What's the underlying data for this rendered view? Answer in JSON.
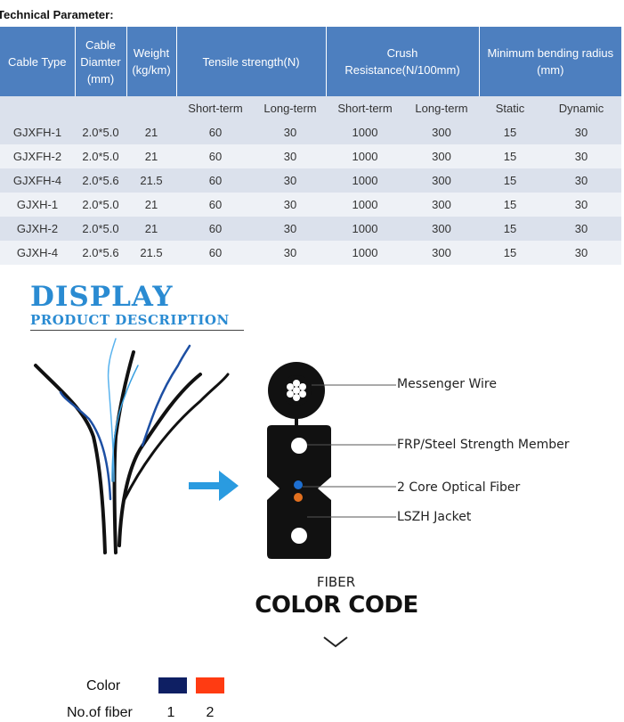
{
  "section_title": "Technical Parameter:",
  "table": {
    "headers": {
      "cable_type": "Cable Type",
      "cable_diameter": [
        "Cable",
        "Diamter",
        "(mm)"
      ],
      "weight": [
        "Weight",
        "(kg/km)"
      ],
      "tensile": "Tensile strength(N)",
      "crush": [
        "Crush",
        "Resistance(N/100mm)"
      ],
      "bending": [
        "Minimum bending radius",
        "(mm)"
      ]
    },
    "subheaders": [
      "Short-term",
      "Long-term",
      "Short-term",
      "Long-term",
      "Static",
      "Dynamic"
    ],
    "rows": [
      [
        "GJXFH-1",
        "2.0*5.0",
        "21",
        "60",
        "30",
        "1000",
        "300",
        "15",
        "30"
      ],
      [
        "GJXFH-2",
        "2.0*5.0",
        "21",
        "60",
        "30",
        "1000",
        "300",
        "15",
        "30"
      ],
      [
        "GJXFH-4",
        "2.0*5.6",
        "21.5",
        "60",
        "30",
        "1000",
        "300",
        "15",
        "30"
      ],
      [
        "GJXH-1",
        "2.0*5.0",
        "21",
        "60",
        "30",
        "1000",
        "300",
        "15",
        "30"
      ],
      [
        "GJXH-2",
        "2.0*5.0",
        "21",
        "60",
        "30",
        "1000",
        "300",
        "15",
        "30"
      ],
      [
        "GJXH-4",
        "2.0*5.6",
        "21.5",
        "60",
        "30",
        "1000",
        "300",
        "15",
        "30"
      ]
    ]
  },
  "display": {
    "title": "DISPLAY",
    "subtitle": "PRODUCT DESCRIPTION"
  },
  "diagram_labels": {
    "messenger": "Messenger Wire",
    "strength": "FRP/Steel Strength Member",
    "fiber": "2 Core Optical Fiber",
    "jacket": "LSZH Jacket"
  },
  "color_code": {
    "fiber_label": "FIBER",
    "title": "COLOR CODE",
    "color_label": "Color",
    "number_label": "No.of fiber",
    "fibers": [
      {
        "number": "1",
        "color": "#0e1f63"
      },
      {
        "number": "2",
        "color": "#ff3b12"
      }
    ]
  },
  "colors": {
    "header_bg": "#4d7fbf",
    "accent_blue": "#2a8bd2",
    "fiber_blue_dot": "#1e6fd1",
    "fiber_orange_dot": "#e2701f"
  }
}
